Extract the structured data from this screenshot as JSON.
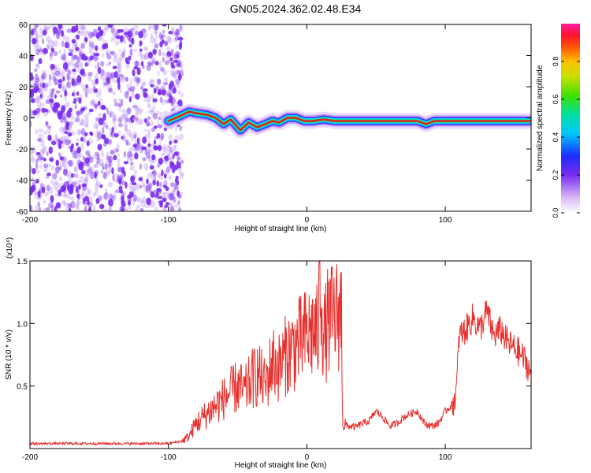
{
  "title": "GN05.2024.362.02.48.E34",
  "colors": {
    "snr_line": "#e8302e",
    "spectrogram_scatter": "#7a2cf0",
    "track_core": "#e0202a"
  },
  "chart_data": [
    {
      "type": "heatmap",
      "title": "GN05.2024.362.02.48.E34",
      "xlabel": "Height of straight line (km)",
      "ylabel": "Frequency (Hz)",
      "xlim": [
        -200,
        162
      ],
      "ylim": [
        -60,
        60
      ],
      "xticks": [
        -200,
        -100,
        0,
        100
      ],
      "xtick_labels": [
        "-200",
        "-100",
        "0",
        "100"
      ],
      "yticks": [
        60,
        40,
        20,
        0,
        -20,
        -40,
        -60
      ],
      "ytick_labels": [
        "60",
        "40",
        "20",
        "0",
        "-20",
        "-40",
        "-60"
      ],
      "colorbar": {
        "label": "Normalized spectral amplitude",
        "range": [
          0,
          1
        ],
        "ticks": [
          0.0,
          0.2,
          0.4,
          0.6,
          0.8
        ],
        "tick_labels": [
          "0.0",
          "0.2",
          "0.4",
          "0.6",
          "0.8"
        ],
        "colormap": "rainbow (white-violet-blue-cyan-green-yellow-red-magenta)"
      },
      "noise_region_x": [
        -200,
        -90
      ],
      "track": {
        "x": [
          -100,
          -92,
          -85,
          -80,
          -72,
          -66,
          -60,
          -55,
          -48,
          -42,
          -36,
          -30,
          -25,
          -20,
          -14,
          -8,
          -2,
          5,
          12,
          20,
          30,
          40,
          50,
          60,
          70,
          75,
          80,
          86,
          92,
          100,
          110,
          120,
          130,
          140,
          150,
          162
        ],
        "freq": [
          -2,
          1,
          4,
          3,
          2,
          0,
          -4,
          -1,
          -8,
          -3,
          -6,
          -4,
          -2,
          -3,
          0,
          0,
          -2,
          -2,
          -1,
          -2,
          -2,
          -2,
          -2,
          -2,
          -2,
          -2,
          -2,
          -4,
          -2,
          -2,
          -2,
          -2,
          -2,
          -2,
          -2,
          -2
        ],
        "peak_amplitude_region": [
          -95,
          162
        ]
      }
    },
    {
      "type": "line",
      "xlabel": "Height of straight line (km)",
      "ylabel": "SNR (10 * v/v)",
      "y_scale_note": "(x10⁴)",
      "xlim": [
        -200,
        162
      ],
      "ylim": [
        0,
        1.5
      ],
      "xticks": [
        -200,
        -100,
        0,
        100
      ],
      "xtick_labels": [
        "-200",
        "-100",
        "0",
        "100"
      ],
      "yticks": [
        0.5,
        1.0,
        1.5
      ],
      "ytick_labels": [
        "0.5",
        "1.0",
        "1.5"
      ],
      "series": [
        {
          "x": [
            -200,
            -180,
            -160,
            -140,
            -120,
            -100,
            -90,
            -85,
            -80,
            -75,
            -70,
            -65,
            -60,
            -55,
            -50,
            -45,
            -40,
            -35,
            -30,
            -25,
            -20,
            -15,
            -10,
            -5,
            0,
            5,
            8,
            10,
            12,
            15,
            20,
            25,
            26,
            30,
            35,
            40,
            45,
            50,
            55,
            60,
            65,
            70,
            75,
            80,
            85,
            90,
            95,
            100,
            105,
            108,
            110,
            115,
            120,
            125,
            130,
            135,
            140,
            145,
            150,
            155,
            160,
            162
          ],
          "y": [
            0.04,
            0.04,
            0.04,
            0.04,
            0.04,
            0.04,
            0.06,
            0.1,
            0.2,
            0.25,
            0.3,
            0.35,
            0.4,
            0.45,
            0.5,
            0.45,
            0.55,
            0.6,
            0.5,
            0.7,
            0.65,
            0.75,
            0.8,
            0.85,
            0.9,
            0.95,
            0.9,
            1.45,
            0.85,
            1.0,
            1.05,
            1.1,
            0.2,
            0.18,
            0.17,
            0.2,
            0.22,
            0.3,
            0.25,
            0.18,
            0.2,
            0.25,
            0.28,
            0.3,
            0.2,
            0.18,
            0.2,
            0.3,
            0.35,
            0.45,
            0.9,
            0.95,
            1.05,
            0.95,
            1.1,
            0.9,
            0.95,
            0.85,
            0.8,
            0.75,
            0.65,
            0.6
          ]
        }
      ]
    }
  ]
}
